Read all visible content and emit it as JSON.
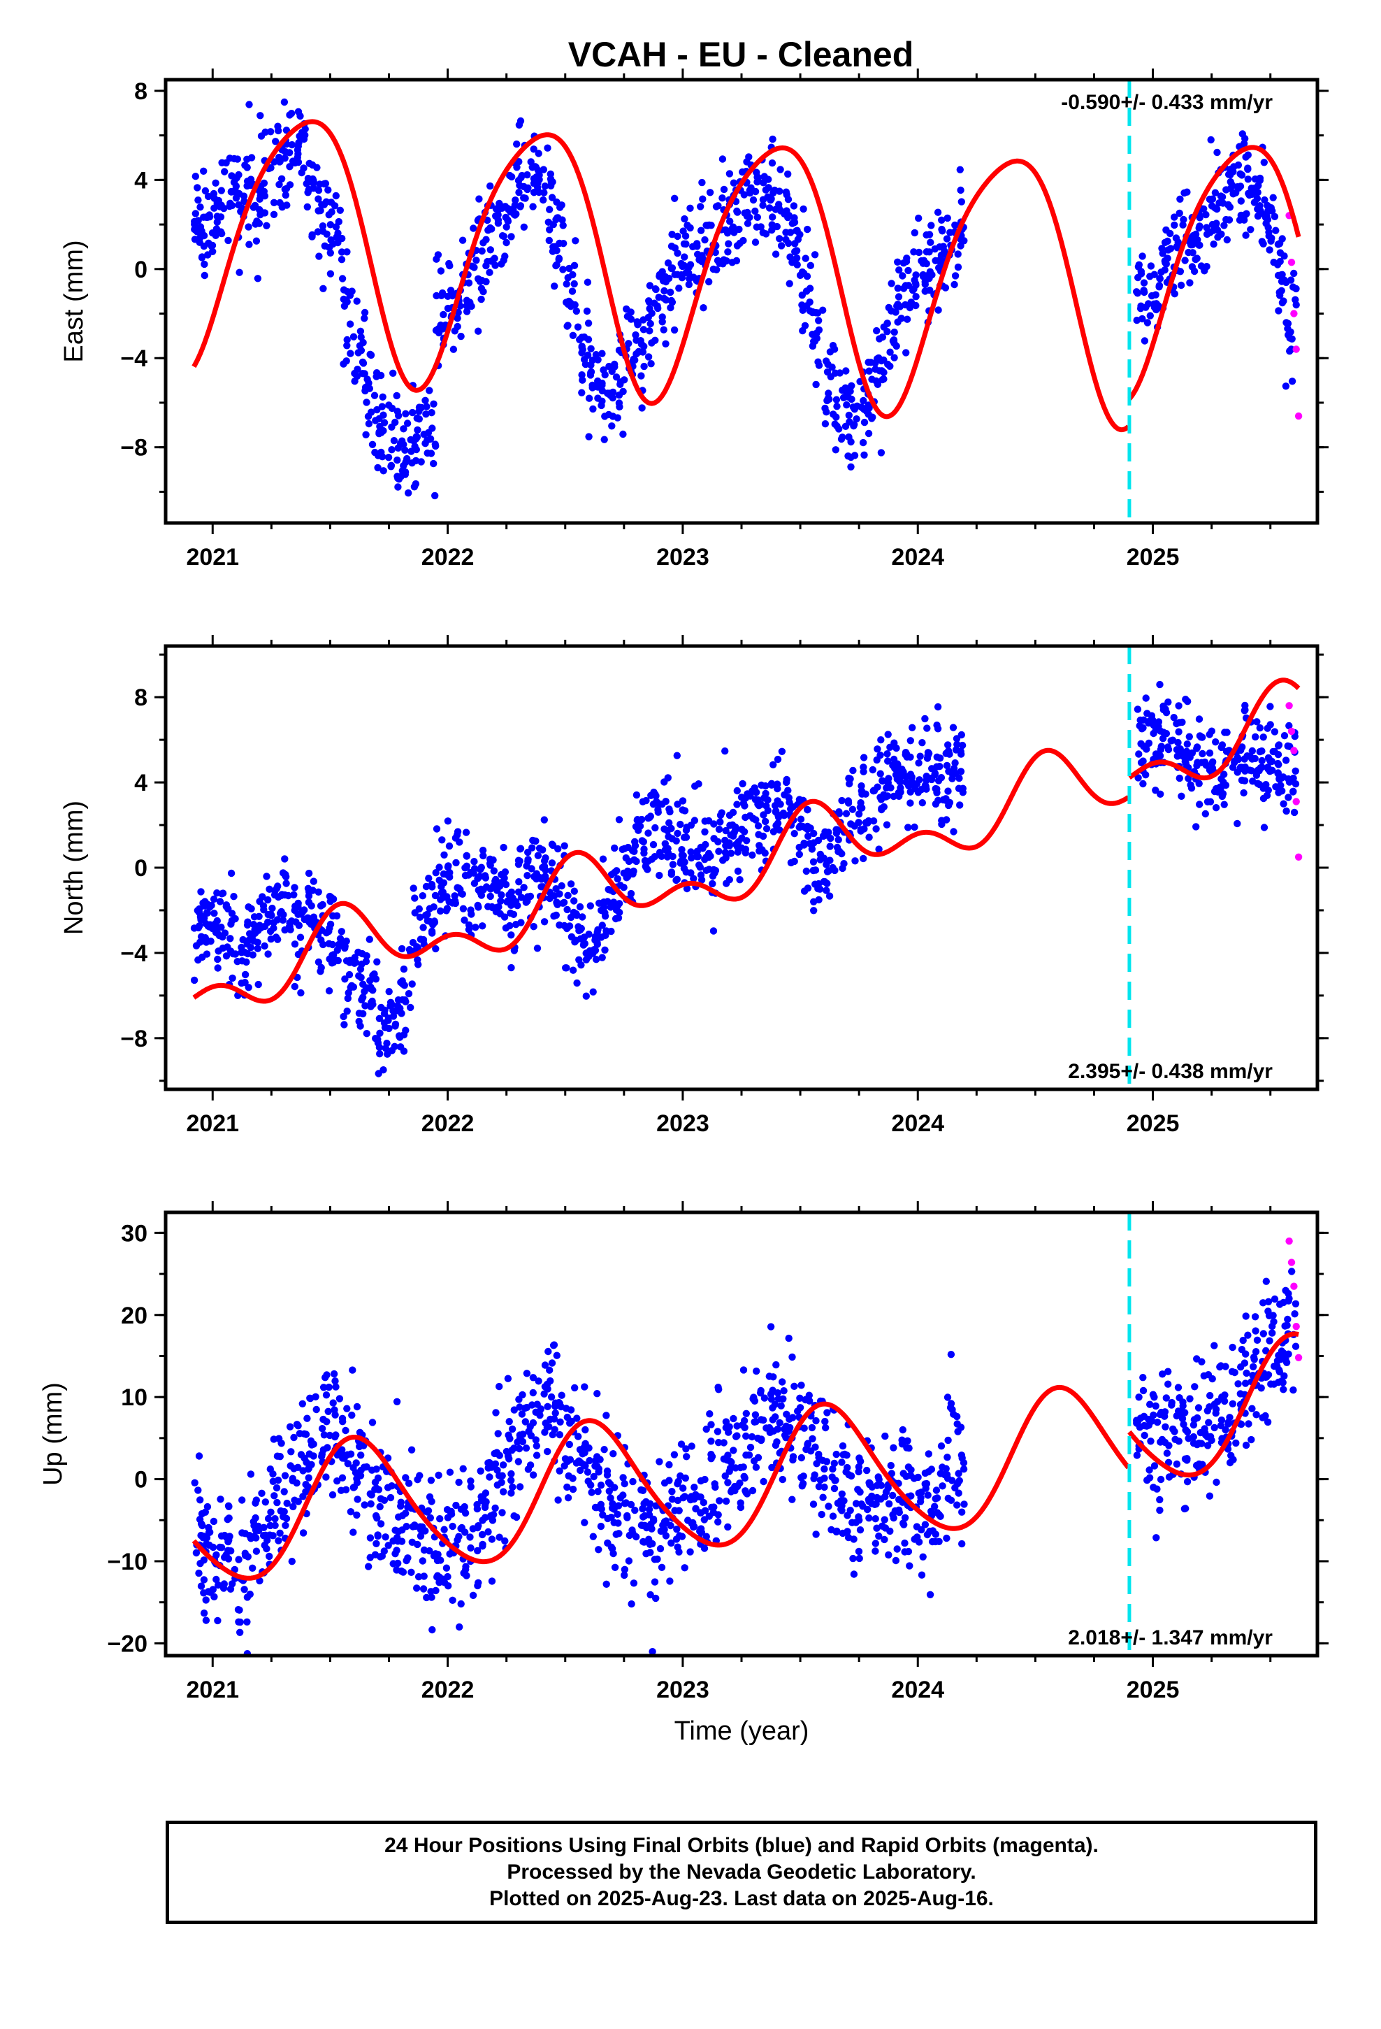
{
  "title": "VCAH  - EU - Cleaned",
  "footer": {
    "line1": "24 Hour Positions Using Final Orbits (blue) and Rapid Orbits (magenta).",
    "line2": "Processed by the Nevada Geodetic Laboratory.",
    "line3": "Plotted on 2025-Aug-23. Last data on 2025-Aug-16."
  },
  "colors": {
    "final_orbits": "#0000ff",
    "rapid_orbits": "#ff00ff",
    "model_fit": "#ff0000",
    "equipment_change": "#00e5ee"
  },
  "chart_data": [
    {
      "type": "scatter",
      "ylabel": "East (mm)",
      "xlabel": "",
      "rate_text": "-0.590+/- 0.433 mm/yr",
      "rate_position": "top-right",
      "xlim": [
        2020.8,
        2025.7
      ],
      "ylim": [
        -11.4,
        8.5
      ],
      "x_ticks": [
        2021,
        2022,
        2023,
        2024,
        2025
      ],
      "y_ticks": [
        -8,
        -4,
        0,
        4,
        8
      ],
      "grid": false,
      "equipment_change_x": 2024.9,
      "model_fit": {
        "rate": -0.59,
        "offset": 0.5,
        "annual_sin": 3.9,
        "annual_cos": -4.3,
        "semiannual_sin": 0.8,
        "semiannual_cos": 0.4,
        "step_at_change": 1.2
      },
      "series": [
        {
          "name": "Final Orbits",
          "x": [
            2020.92,
            2020.96,
            2021.0,
            2021.05,
            2021.1,
            2021.15,
            2021.2,
            2021.25,
            2021.3,
            2021.35,
            2021.4,
            2021.45,
            2021.5,
            2021.55,
            2021.6,
            2021.65,
            2021.7,
            2021.75,
            2021.8,
            2021.85,
            2021.9,
            2021.95,
            2022.0,
            2022.05,
            2022.1,
            2022.15,
            2022.2,
            2022.25,
            2022.3,
            2022.35,
            2022.4,
            2022.45,
            2022.5,
            2022.55,
            2022.6,
            2022.65,
            2022.7,
            2022.75,
            2022.8,
            2022.85,
            2022.9,
            2022.95,
            2023.0,
            2023.05,
            2023.1,
            2023.15,
            2023.2,
            2023.25,
            2023.3,
            2023.35,
            2023.4,
            2023.45,
            2023.5,
            2023.55,
            2023.6,
            2023.65,
            2023.7,
            2023.75,
            2023.8,
            2023.85,
            2023.9,
            2023.95,
            2024.0,
            2024.05,
            2024.1,
            2024.15,
            2024.93,
            2024.98,
            2025.03,
            2025.08,
            2025.13,
            2025.18,
            2025.23,
            2025.28,
            2025.33,
            2025.38,
            2025.43,
            2025.48,
            2025.53,
            2025.56
          ],
          "values": [
            1.9,
            2.6,
            2.8,
            3.3,
            3.0,
            3.6,
            4.1,
            4.6,
            5.0,
            5.2,
            3.9,
            3.0,
            1.2,
            -1.9,
            -3.5,
            -5.6,
            -7.2,
            -8.1,
            -8.6,
            -7.7,
            -7.0,
            -2.0,
            -1.4,
            -0.5,
            0.4,
            1.3,
            2.1,
            2.8,
            3.7,
            3.6,
            3.0,
            1.5,
            -1.5,
            -3.7,
            -5.0,
            -5.4,
            -5.0,
            -3.8,
            -2.9,
            -2.3,
            -1.1,
            -0.2,
            0.6,
            0.7,
            1.7,
            1.9,
            2.3,
            3.1,
            3.6,
            3.2,
            2.7,
            1.8,
            -0.7,
            -3.0,
            -4.8,
            -6.1,
            -6.9,
            -6.3,
            -4.7,
            -2.8,
            -1.5,
            -1.0,
            -0.3,
            0.4,
            0.8,
            1.1,
            -1.6,
            -0.8,
            0.1,
            0.7,
            1.3,
            2.1,
            2.7,
            3.3,
            3.8,
            3.9,
            3.1,
            1.9,
            -0.3,
            -2.1
          ],
          "color": "#0000ff"
        },
        {
          "name": "Rapid Orbits",
          "x": [
            2025.58,
            2025.59,
            2025.6,
            2025.61,
            2025.62
          ],
          "values": [
            2.4,
            0.3,
            -2.0,
            -3.6,
            -6.6
          ],
          "color": "#ff00ff"
        }
      ]
    },
    {
      "type": "scatter",
      "ylabel": "North (mm)",
      "xlabel": "",
      "rate_text": "2.395+/- 0.438 mm/yr",
      "rate_position": "bottom-right",
      "xlim": [
        2020.8,
        2025.7
      ],
      "ylim": [
        -10.4,
        10.4
      ],
      "x_ticks": [
        2021,
        2022,
        2023,
        2024,
        2025
      ],
      "y_ticks": [
        -8,
        -4,
        0,
        4,
        8
      ],
      "grid": false,
      "equipment_change_x": 2024.9,
      "model_fit": {
        "rate": 2.395,
        "offset": -0.5,
        "annual_sin": -0.6,
        "annual_cos": -1.2,
        "semiannual_sin": 0.4,
        "semiannual_cos": 0.9,
        "step_at_change": 0.9
      },
      "series": [
        {
          "name": "Final Orbits",
          "x": [
            2020.92,
            2020.96,
            2021.0,
            2021.05,
            2021.1,
            2021.15,
            2021.2,
            2021.25,
            2021.3,
            2021.35,
            2021.4,
            2021.45,
            2021.5,
            2021.55,
            2021.6,
            2021.65,
            2021.7,
            2021.75,
            2021.8,
            2021.85,
            2021.9,
            2021.95,
            2022.0,
            2022.05,
            2022.1,
            2022.15,
            2022.2,
            2022.25,
            2022.3,
            2022.35,
            2022.4,
            2022.45,
            2022.5,
            2022.55,
            2022.6,
            2022.65,
            2022.7,
            2022.75,
            2022.8,
            2022.85,
            2022.9,
            2022.95,
            2023.0,
            2023.05,
            2023.1,
            2023.15,
            2023.2,
            2023.25,
            2023.3,
            2023.35,
            2023.4,
            2023.45,
            2023.5,
            2023.55,
            2023.6,
            2023.65,
            2023.7,
            2023.75,
            2023.8,
            2023.85,
            2023.9,
            2023.95,
            2024.0,
            2024.05,
            2024.1,
            2024.15,
            2024.93,
            2024.98,
            2025.03,
            2025.08,
            2025.13,
            2025.18,
            2025.23,
            2025.28,
            2025.33,
            2025.38,
            2025.43,
            2025.48,
            2025.53,
            2025.56
          ],
          "values": [
            -3.0,
            -2.2,
            -2.6,
            -3.0,
            -4.1,
            -3.2,
            -2.6,
            -1.7,
            -1.5,
            -2.1,
            -2.0,
            -2.8,
            -3.5,
            -4.8,
            -5.1,
            -6.2,
            -7.6,
            -7.1,
            -6.2,
            -3.2,
            -1.7,
            -0.9,
            -0.1,
            -0.6,
            -1.1,
            -0.5,
            -1.3,
            -1.8,
            -0.9,
            -0.3,
            0.1,
            -1.0,
            -2.3,
            -3.8,
            -3.5,
            -2.2,
            -0.7,
            0.2,
            1.4,
            2.0,
            1.5,
            0.9,
            0.5,
            0.8,
            0.4,
            1.2,
            1.6,
            2.0,
            2.3,
            3.0,
            3.5,
            2.1,
            1.3,
            0.4,
            -0.6,
            1.6,
            2.3,
            3.2,
            3.7,
            4.2,
            4.5,
            4.3,
            4.8,
            4.6,
            3.9,
            4.4,
            6.0,
            6.4,
            6.1,
            5.8,
            5.3,
            4.7,
            4.5,
            4.3,
            4.8,
            5.5,
            5.3,
            4.8,
            4.1,
            4.5
          ],
          "color": "#0000ff"
        },
        {
          "name": "Rapid Orbits",
          "x": [
            2025.58,
            2025.59,
            2025.6,
            2025.61,
            2025.62
          ],
          "values": [
            7.6,
            6.4,
            5.5,
            3.1,
            0.5
          ],
          "color": "#ff00ff"
        }
      ]
    },
    {
      "type": "scatter",
      "ylabel": "Up (mm)",
      "xlabel": "Time (year)",
      "rate_text": "2.018+/- 1.347 mm/yr",
      "rate_position": "bottom-right",
      "xlim": [
        2020.8,
        2025.7
      ],
      "ylim": [
        -21.5,
        32.5
      ],
      "x_ticks": [
        2021,
        2022,
        2023,
        2024,
        2025
      ],
      "y_ticks": [
        -20,
        -10,
        0,
        10,
        20,
        30
      ],
      "grid": false,
      "equipment_change_x": 2024.9,
      "model_fit": {
        "rate": 2.018,
        "offset": -0.8,
        "annual_sin": -5.5,
        "annual_cos": -5.8,
        "semiannual_sin": 0.6,
        "semiannual_cos": 0.8,
        "step_at_change": 4.5
      },
      "series": [
        {
          "name": "Final Orbits",
          "x": [
            2020.92,
            2020.96,
            2021.0,
            2021.05,
            2021.1,
            2021.15,
            2021.2,
            2021.25,
            2021.3,
            2021.35,
            2021.4,
            2021.45,
            2021.5,
            2021.55,
            2021.6,
            2021.65,
            2021.7,
            2021.75,
            2021.8,
            2021.85,
            2021.9,
            2021.95,
            2022.0,
            2022.05,
            2022.1,
            2022.15,
            2022.2,
            2022.25,
            2022.3,
            2022.35,
            2022.4,
            2022.45,
            2022.5,
            2022.55,
            2022.6,
            2022.65,
            2022.7,
            2022.75,
            2022.8,
            2022.85,
            2022.9,
            2022.95,
            2023.0,
            2023.05,
            2023.1,
            2023.15,
            2023.2,
            2023.25,
            2023.3,
            2023.35,
            2023.4,
            2023.45,
            2023.5,
            2023.55,
            2023.6,
            2023.65,
            2023.7,
            2023.75,
            2023.8,
            2023.85,
            2023.9,
            2023.95,
            2024.0,
            2024.05,
            2024.1,
            2024.15,
            2024.93,
            2024.98,
            2025.03,
            2025.08,
            2025.13,
            2025.18,
            2025.23,
            2025.28,
            2025.33,
            2025.38,
            2025.43,
            2025.48,
            2025.53,
            2025.56
          ],
          "values": [
            -6.0,
            -8.5,
            -10.2,
            -9.0,
            -11.4,
            -7.3,
            -7.0,
            -3.1,
            -0.4,
            2.0,
            3.8,
            5.2,
            6.0,
            2.3,
            1.5,
            -1.2,
            -3.0,
            -5.1,
            -6.3,
            -7.6,
            -7.0,
            -8.4,
            -8.8,
            -6.3,
            -4.8,
            -3.2,
            0.7,
            3.0,
            5.4,
            7.1,
            8.7,
            6.2,
            4.6,
            3.1,
            1.3,
            -1.8,
            -3.4,
            -4.5,
            -5.1,
            -6.9,
            -5.8,
            -4.2,
            -3.5,
            -2.7,
            -0.9,
            1.5,
            2.5,
            4.1,
            6.8,
            9.2,
            7.3,
            5.5,
            4.0,
            2.0,
            0.1,
            -1.6,
            -3.1,
            -2.4,
            -3.8,
            -5.0,
            -3.1,
            -1.9,
            -2.7,
            -4.2,
            3.4,
            1.8,
            4.8,
            3.2,
            7.1,
            5.5,
            4.4,
            5.3,
            6.5,
            7.4,
            9.1,
            10.6,
            12.8,
            15.4,
            17.6,
            19.5
          ],
          "color": "#0000ff"
        },
        {
          "name": "Rapid Orbits",
          "x": [
            2025.58,
            2025.59,
            2025.6,
            2025.61,
            2025.62
          ],
          "values": [
            29.0,
            26.4,
            23.5,
            18.6,
            14.8
          ],
          "color": "#ff00ff"
        }
      ]
    }
  ]
}
